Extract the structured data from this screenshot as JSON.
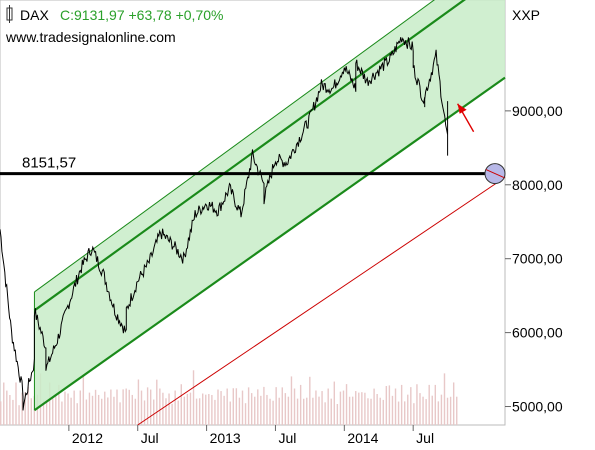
{
  "header": {
    "symbol": "DAX",
    "quote": "C:9131,97 +63,78 +0,70%",
    "source": "www.tradesignalonline.com",
    "exchange": "XXP"
  },
  "chart_data": {
    "type": "line",
    "title": "DAX",
    "last_close": 9131.97,
    "change": 63.78,
    "change_pct": 0.7,
    "ylim": [
      4750,
      10500
    ],
    "y_ticks": [
      5000,
      6000,
      7000,
      8000,
      9000
    ],
    "y_tick_labels": [
      "5000,00",
      "6000,00",
      "7000,00",
      "8000,00",
      "9000,00"
    ],
    "x_tick_labels": [
      "2012",
      "Jul",
      "2013",
      "Jul",
      "2014",
      "Jul"
    ],
    "x_ticks": [
      "2012-01",
      "2012-07",
      "2013-01",
      "2013-07",
      "2014-01",
      "2014-07"
    ],
    "x_range": [
      "2011-07",
      "2015-03"
    ],
    "series": [
      {
        "type": "line",
        "points": [
          [
            "2011-07",
            7400
          ],
          [
            "2011-08",
            6000
          ],
          [
            "2011-09",
            5200
          ],
          [
            "2011-09",
            5000
          ],
          [
            "2011-10",
            5600
          ],
          [
            "2011-10",
            6300
          ],
          [
            "2011-11",
            5800
          ],
          [
            "2011-11",
            5500
          ],
          [
            "2011-12",
            5900
          ],
          [
            "2012-01",
            6400
          ],
          [
            "2012-02",
            6850
          ],
          [
            "2012-03",
            7150
          ],
          [
            "2012-04",
            6800
          ],
          [
            "2012-05",
            6300
          ],
          [
            "2012-06",
            6000
          ],
          [
            "2012-06",
            6300
          ],
          [
            "2012-07",
            6700
          ],
          [
            "2012-08",
            6950
          ],
          [
            "2012-09",
            7350
          ],
          [
            "2012-10",
            7200
          ],
          [
            "2012-11",
            7000
          ],
          [
            "2012-12",
            7600
          ],
          [
            "2013-01",
            7750
          ],
          [
            "2013-02",
            7650
          ],
          [
            "2013-03",
            7950
          ],
          [
            "2013-04",
            7600
          ],
          [
            "2013-05",
            8400
          ],
          [
            "2013-06",
            8000
          ],
          [
            "2013-06",
            7800
          ],
          [
            "2013-07",
            8350
          ],
          [
            "2013-08",
            8300
          ],
          [
            "2013-09",
            8600
          ],
          [
            "2013-10",
            8900
          ],
          [
            "2013-11",
            9350
          ],
          [
            "2013-12",
            9300
          ],
          [
            "2014-01",
            9600
          ],
          [
            "2014-02",
            9300
          ],
          [
            "2014-02",
            9650
          ],
          [
            "2014-03",
            9400
          ],
          [
            "2014-04",
            9550
          ],
          [
            "2014-05",
            9700
          ],
          [
            "2014-06",
            10000
          ],
          [
            "2014-07",
            9850
          ],
          [
            "2014-07",
            9600
          ],
          [
            "2014-08",
            9100
          ],
          [
            "2014-08",
            9200
          ],
          [
            "2014-09",
            9750
          ],
          [
            "2014-10",
            8600
          ],
          [
            "2014-10",
            8450
          ],
          [
            "2014-10",
            8900
          ],
          [
            "2014-10",
            9132
          ]
        ]
      },
      {
        "type": "bar",
        "name": "volume",
        "values": [
          0.45,
          0.7,
          0.5,
          0.55,
          0.4,
          0.6,
          0.35,
          0.5,
          0.45,
          0.65,
          0.4,
          0.55,
          0.5,
          0.75,
          0.45,
          0.4,
          0.6,
          0.5,
          0.45,
          0.55,
          0.4,
          0.5,
          0.6,
          0.45,
          0.5,
          0.4,
          0.55,
          0.7,
          0.45,
          0.5,
          0.4,
          0.6,
          0.45,
          0.5,
          0.55,
          0.4,
          0.65,
          0.45,
          0.5,
          0.4,
          0.55,
          0.5,
          0.6,
          0.45,
          0.5,
          0.75,
          0.5,
          0.45,
          0.6,
          0.5
        ]
      }
    ],
    "annotations": [
      {
        "type": "hline",
        "y": 8151.57,
        "label": "8151,57",
        "color": "#000000"
      },
      {
        "type": "trendline",
        "name": "support",
        "from": [
          "2012-07",
          4750
        ],
        "to": [
          "2015-03",
          8100
        ],
        "color": "#cc0000"
      },
      {
        "type": "channel",
        "color": "#1a8a1a",
        "fill": "#c8ecc8",
        "from_date": "2011-10",
        "to_date": "2015-03",
        "lower": [
          4950,
          9450
        ],
        "mid": [
          6300,
          10900
        ],
        "upper": [
          6550,
          11200
        ]
      },
      {
        "type": "arrow",
        "color": "#e00000",
        "tip": [
          "2014-10",
          9150
        ]
      },
      {
        "type": "circle-marker",
        "at": [
          "2015-03",
          8151.57
        ]
      }
    ]
  },
  "colors": {
    "price": "#000000",
    "channel_line": "#1a8a1a",
    "channel_fill": "#c8ecc8",
    "volume": "#e8c8c8",
    "support": "#cc0000",
    "quote": "#2aa02a"
  }
}
